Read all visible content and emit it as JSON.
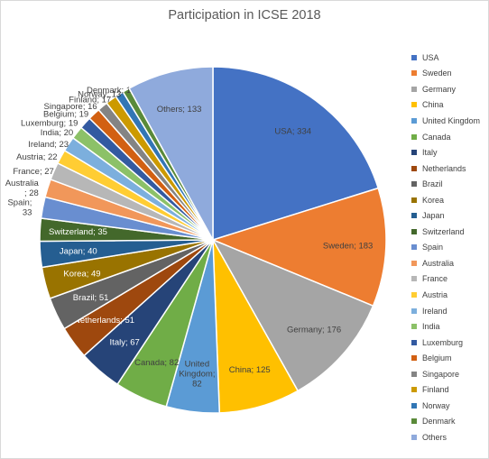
{
  "chart_data": {
    "type": "pie",
    "title": "Participation in ICSE 2018",
    "legend_position": "right",
    "label_format": "{category}; {value}",
    "categories": [
      "USA",
      "Sweden",
      "Germany",
      "China",
      "United Kingdom",
      "Canada",
      "Italy",
      "Netherlands",
      "Brazil",
      "Korea",
      "Japan",
      "Switzerland",
      "Spain",
      "Australia",
      "France",
      "Austria",
      "Ireland",
      "India",
      "Luxemburg",
      "Belgium",
      "Singapore",
      "Finland",
      "Norway",
      "Denmark",
      "Others"
    ],
    "values": [
      334,
      183,
      176,
      125,
      82,
      82,
      67,
      51,
      51,
      49,
      40,
      35,
      33,
      28,
      27,
      22,
      23,
      20,
      19,
      19,
      16,
      17,
      13,
      11,
      133
    ],
    "colors": [
      "#4472c4",
      "#ed7d31",
      "#a5a5a5",
      "#ffc000",
      "#5b9bd5",
      "#70ad47",
      "#264478",
      "#9e480e",
      "#636363",
      "#997300",
      "#255e91",
      "#43682b",
      "#698ed0",
      "#f1975a",
      "#b7b7b7",
      "#ffcd33",
      "#7cafdd",
      "#8cc168",
      "#335aa1",
      "#d26012",
      "#848484",
      "#cc9a00",
      "#3276b5",
      "#5a8a39",
      "#8faadc"
    ],
    "point_labels": [
      "USA; 334",
      "Sweden; 183",
      "Germany; 176",
      "China; 125",
      [
        "United",
        "Kingdom;",
        "82"
      ],
      "Canada; 82",
      "Italy; 67",
      "Netherlands; 51",
      "Brazil; 51",
      "Korea; 49",
      "Japan; 40",
      "Switzerland; 35",
      [
        "Spain;",
        "33"
      ],
      [
        "Australia",
        "; 28"
      ],
      "France; 27",
      "Austria; 22",
      "Ireland; 23",
      "India; 20",
      "Luxemburg; 19",
      "Belgium; 19",
      "Singapore; 16",
      "Finland; 17",
      "Norway; 13",
      "Denmark; 11",
      "Others; 133"
    ]
  }
}
